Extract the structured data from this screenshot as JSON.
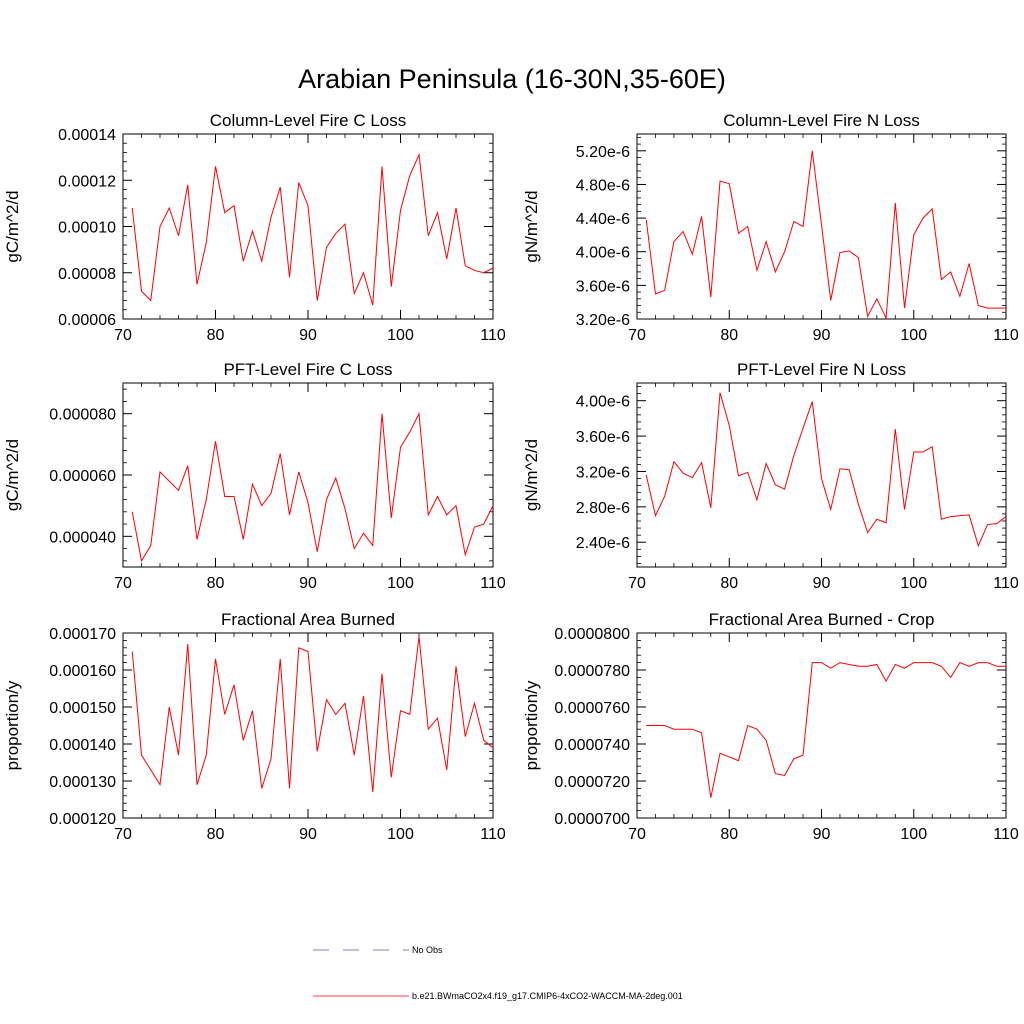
{
  "title": "Arabian Peninsula (16-30N,35-60E)",
  "colors": {
    "model_line": "#ff0000",
    "obs_line": "#5555bb",
    "axis": "#000000"
  },
  "legend": [
    {
      "label": "No Obs",
      "style": "dashed",
      "color": "#5555bb"
    },
    {
      "label": "b.e21.BWmaCO2x4.f19_g17.CMIP6-4xCO2-WACCM-MA-2deg.001",
      "style": "solid",
      "color": "#ff0000"
    }
  ],
  "chart_data": [
    {
      "type": "line",
      "title": "Column-Level Fire C Loss",
      "ylabel": "gC/m^2/d",
      "xlim": [
        70,
        110
      ],
      "ylim": [
        6e-05,
        0.00014
      ],
      "xticks": [
        70,
        80,
        90,
        100,
        110
      ],
      "xtick_labels": [
        "70",
        "80",
        "90",
        "100",
        "110"
      ],
      "yticks": [
        6e-05,
        8e-05,
        0.0001,
        0.00012,
        0.00014
      ],
      "ytick_labels": [
        "0.00006",
        "0.00008",
        "0.00010",
        "0.00012",
        "0.00014"
      ],
      "yminor_step": 4e-06,
      "series": [
        {
          "name": "b.e21.BWmaCO2x4.f19_g17.CMIP6-4xCO2-WACCM-MA-2deg.001",
          "x": [
            71,
            72,
            73,
            74,
            75,
            76,
            77,
            78,
            79,
            80,
            81,
            82,
            83,
            84,
            85,
            86,
            87,
            88,
            89,
            90,
            91,
            92,
            93,
            94,
            95,
            96,
            97,
            98,
            99,
            100,
            101,
            102,
            103,
            104,
            105,
            106,
            107,
            108,
            109,
            110
          ],
          "values": [
            0.000108,
            7.2e-05,
            6.8e-05,
            0.0001,
            0.000108,
            9.6e-05,
            0.000118,
            7.5e-05,
            9.3e-05,
            0.000126,
            0.000106,
            0.000109,
            8.5e-05,
            9.8e-05,
            8.5e-05,
            0.000104,
            0.000117,
            7.8e-05,
            0.000119,
            0.000109,
            6.8e-05,
            9.1e-05,
            9.7e-05,
            0.000101,
            7.1e-05,
            8e-05,
            6.6e-05,
            0.000126,
            7.4e-05,
            0.000107,
            0.000122,
            0.000131,
            9.6e-05,
            0.000106,
            8.6e-05,
            0.000108,
            8.3e-05,
            8.1e-05,
            8e-05,
            8.2e-05
          ]
        }
      ]
    },
    {
      "type": "line",
      "title": "Column-Level Fire N Loss",
      "ylabel": "gN/m^2/d",
      "xlim": [
        70,
        110
      ],
      "ylim": [
        3.2e-06,
        5.4e-06
      ],
      "xticks": [
        70,
        80,
        90,
        100,
        110
      ],
      "xtick_labels": [
        "70",
        "80",
        "90",
        "100",
        "110"
      ],
      "yticks": [
        3.2e-06,
        3.6e-06,
        4e-06,
        4.4e-06,
        4.8e-06,
        5.2e-06
      ],
      "ytick_labels": [
        "3.20e-6",
        "3.60e-6",
        "4.00e-6",
        "4.40e-6",
        "4.80e-6",
        "5.20e-6"
      ],
      "yminor_step": 8e-08,
      "series": [
        {
          "name": "b.e21.BWmaCO2x4.f19_g17.CMIP6-4xCO2-WACCM-MA-2deg.001",
          "x": [
            71,
            72,
            73,
            74,
            75,
            76,
            77,
            78,
            79,
            80,
            81,
            82,
            83,
            84,
            85,
            86,
            87,
            88,
            89,
            90,
            91,
            92,
            93,
            94,
            95,
            96,
            97,
            98,
            99,
            100,
            101,
            102,
            103,
            104,
            105,
            106,
            107,
            108,
            109,
            110
          ],
          "values": [
            4.38e-06,
            3.5e-06,
            3.54e-06,
            4.12e-06,
            4.24e-06,
            3.97e-06,
            4.42e-06,
            3.46e-06,
            4.84e-06,
            4.81e-06,
            4.22e-06,
            4.3e-06,
            3.78e-06,
            4.12e-06,
            3.76e-06,
            4e-06,
            4.36e-06,
            4.3e-06,
            5.2e-06,
            4.32e-06,
            3.42e-06,
            3.99e-06,
            4.01e-06,
            3.93e-06,
            3.23e-06,
            3.44e-06,
            3.21e-06,
            4.58e-06,
            3.33e-06,
            4.2e-06,
            4.4e-06,
            4.51e-06,
            3.67e-06,
            3.76e-06,
            3.47e-06,
            3.86e-06,
            3.36e-06,
            3.33e-06,
            3.33e-06,
            3.33e-06
          ]
        }
      ]
    },
    {
      "type": "line",
      "title": "PFT-Level Fire C Loss",
      "ylabel": "gC/m^2/d",
      "xlim": [
        70,
        110
      ],
      "ylim": [
        3e-05,
        9e-05
      ],
      "xticks": [
        70,
        80,
        90,
        100,
        110
      ],
      "xtick_labels": [
        "70",
        "80",
        "90",
        "100",
        "110"
      ],
      "yticks": [
        4e-05,
        6e-05,
        8e-05
      ],
      "ytick_labels": [
        "0.000040",
        "0.000060",
        "0.000080"
      ],
      "yminor_step": 4e-06,
      "series": [
        {
          "name": "b.e21.BWmaCO2x4.f19_g17.CMIP6-4xCO2-WACCM-MA-2deg.001",
          "x": [
            71,
            72,
            73,
            74,
            75,
            76,
            77,
            78,
            79,
            80,
            81,
            82,
            83,
            84,
            85,
            86,
            87,
            88,
            89,
            90,
            91,
            92,
            93,
            94,
            95,
            96,
            97,
            98,
            99,
            100,
            101,
            102,
            103,
            104,
            105,
            106,
            107,
            108,
            109,
            110
          ],
          "values": [
            4.8e-05,
            3.2e-05,
            3.7e-05,
            6.1e-05,
            5.8e-05,
            5.5e-05,
            6.3e-05,
            3.9e-05,
            5.2e-05,
            7.1e-05,
            5.3e-05,
            5.3e-05,
            3.9e-05,
            5.7e-05,
            5e-05,
            5.4e-05,
            6.7e-05,
            4.7e-05,
            6.1e-05,
            5.1e-05,
            3.5e-05,
            5.2e-05,
            5.9e-05,
            4.9e-05,
            3.6e-05,
            4.1e-05,
            3.7e-05,
            8e-05,
            4.6e-05,
            6.9e-05,
            7.4e-05,
            8e-05,
            4.7e-05,
            5.3e-05,
            4.7e-05,
            5e-05,
            3.4e-05,
            4.3e-05,
            4.4e-05,
            5e-05
          ]
        }
      ]
    },
    {
      "type": "line",
      "title": "PFT-Level Fire N Loss",
      "ylabel": "gN/m^2/d",
      "xlim": [
        70,
        110
      ],
      "ylim": [
        2.12e-06,
        4.2e-06
      ],
      "xticks": [
        70,
        80,
        90,
        100,
        110
      ],
      "xtick_labels": [
        "70",
        "80",
        "90",
        "100",
        "110"
      ],
      "yticks": [
        2.4e-06,
        2.8e-06,
        3.2e-06,
        3.6e-06,
        4e-06
      ],
      "ytick_labels": [
        "2.40e-6",
        "2.80e-6",
        "3.20e-6",
        "3.60e-6",
        "4.00e-6"
      ],
      "yminor_step": 8e-08,
      "series": [
        {
          "name": "b.e21.BWmaCO2x4.f19_g17.CMIP6-4xCO2-WACCM-MA-2deg.001",
          "x": [
            71,
            72,
            73,
            74,
            75,
            76,
            77,
            78,
            79,
            80,
            81,
            82,
            83,
            84,
            85,
            86,
            87,
            88,
            89,
            90,
            91,
            92,
            93,
            94,
            95,
            96,
            97,
            98,
            99,
            100,
            101,
            102,
            103,
            104,
            105,
            106,
            107,
            108,
            109,
            110
          ],
          "values": [
            3.16e-06,
            2.7e-06,
            2.92e-06,
            3.31e-06,
            3.18e-06,
            3.13e-06,
            3.3e-06,
            2.79e-06,
            4.09e-06,
            3.72e-06,
            3.15e-06,
            3.19e-06,
            2.88e-06,
            3.29e-06,
            3.05e-06,
            3e-06,
            3.38e-06,
            3.69e-06,
            3.99e-06,
            3.12e-06,
            2.77e-06,
            3.23e-06,
            3.22e-06,
            2.83e-06,
            2.51e-06,
            2.66e-06,
            2.62e-06,
            3.68e-06,
            2.77e-06,
            3.42e-06,
            3.42e-06,
            3.48e-06,
            2.66e-06,
            2.69e-06,
            2.7e-06,
            2.71e-06,
            2.36e-06,
            2.6e-06,
            2.61e-06,
            2.69e-06
          ]
        }
      ]
    },
    {
      "type": "line",
      "title": "Fractional Area Burned",
      "ylabel": "proportion/y",
      "xlim": [
        70,
        110
      ],
      "ylim": [
        0.00012,
        0.00017
      ],
      "xticks": [
        70,
        80,
        90,
        100,
        110
      ],
      "xtick_labels": [
        "70",
        "80",
        "90",
        "100",
        "110"
      ],
      "yticks": [
        0.00012,
        0.00013,
        0.00014,
        0.00015,
        0.00016,
        0.00017
      ],
      "ytick_labels": [
        "0.000120",
        "0.000130",
        "0.000140",
        "0.000150",
        "0.000160",
        "0.000170"
      ],
      "yminor_step": 2e-06,
      "series": [
        {
          "name": "b.e21.BWmaCO2x4.f19_g17.CMIP6-4xCO2-WACCM-MA-2deg.001",
          "x": [
            71,
            72,
            73,
            74,
            75,
            76,
            77,
            78,
            79,
            80,
            81,
            82,
            83,
            84,
            85,
            86,
            87,
            88,
            89,
            90,
            91,
            92,
            93,
            94,
            95,
            96,
            97,
            98,
            99,
            100,
            101,
            102,
            103,
            104,
            105,
            106,
            107,
            108,
            109,
            110
          ],
          "values": [
            0.000165,
            0.000137,
            0.000133,
            0.000129,
            0.00015,
            0.000137,
            0.000167,
            0.000129,
            0.000137,
            0.000163,
            0.000148,
            0.000156,
            0.000141,
            0.000149,
            0.000128,
            0.000136,
            0.000163,
            0.000128,
            0.000166,
            0.000165,
            0.000138,
            0.000152,
            0.000148,
            0.000151,
            0.000137,
            0.000153,
            0.000127,
            0.000159,
            0.000131,
            0.000149,
            0.000148,
            0.000169,
            0.000144,
            0.000147,
            0.000133,
            0.000161,
            0.000142,
            0.000151,
            0.000141,
            0.000139
          ]
        }
      ]
    },
    {
      "type": "line",
      "title": "Fractional Area Burned - Crop",
      "ylabel": "proportion/y",
      "xlim": [
        70,
        110
      ],
      "ylim": [
        7e-05,
        8e-05
      ],
      "xticks": [
        70,
        80,
        90,
        100,
        110
      ],
      "xtick_labels": [
        "70",
        "80",
        "90",
        "100",
        "110"
      ],
      "yticks": [
        7e-05,
        7.2e-05,
        7.4e-05,
        7.6e-05,
        7.8e-05,
        8e-05
      ],
      "ytick_labels": [
        "0.0000700",
        "0.0000720",
        "0.0000740",
        "0.0000760",
        "0.0000780",
        "0.0000800"
      ],
      "yminor_step": 4e-07,
      "series": [
        {
          "name": "b.e21.BWmaCO2x4.f19_g17.CMIP6-4xCO2-WACCM-MA-2deg.001",
          "x": [
            71,
            72,
            73,
            74,
            75,
            76,
            77,
            78,
            79,
            80,
            81,
            82,
            83,
            84,
            85,
            86,
            87,
            88,
            89,
            90,
            91,
            92,
            93,
            94,
            95,
            96,
            97,
            98,
            99,
            100,
            101,
            102,
            103,
            104,
            105,
            106,
            107,
            108,
            109,
            110
          ],
          "values": [
            7.5e-05,
            7.5e-05,
            7.5e-05,
            7.48e-05,
            7.48e-05,
            7.48e-05,
            7.46e-05,
            7.11e-05,
            7.35e-05,
            7.33e-05,
            7.31e-05,
            7.5e-05,
            7.48e-05,
            7.42e-05,
            7.24e-05,
            7.23e-05,
            7.32e-05,
            7.34e-05,
            7.84e-05,
            7.84e-05,
            7.81e-05,
            7.84e-05,
            7.83e-05,
            7.82e-05,
            7.82e-05,
            7.83e-05,
            7.74e-05,
            7.83e-05,
            7.81e-05,
            7.84e-05,
            7.84e-05,
            7.84e-05,
            7.82e-05,
            7.76e-05,
            7.84e-05,
            7.82e-05,
            7.84e-05,
            7.84e-05,
            7.82e-05,
            7.82e-05
          ]
        }
      ]
    }
  ]
}
